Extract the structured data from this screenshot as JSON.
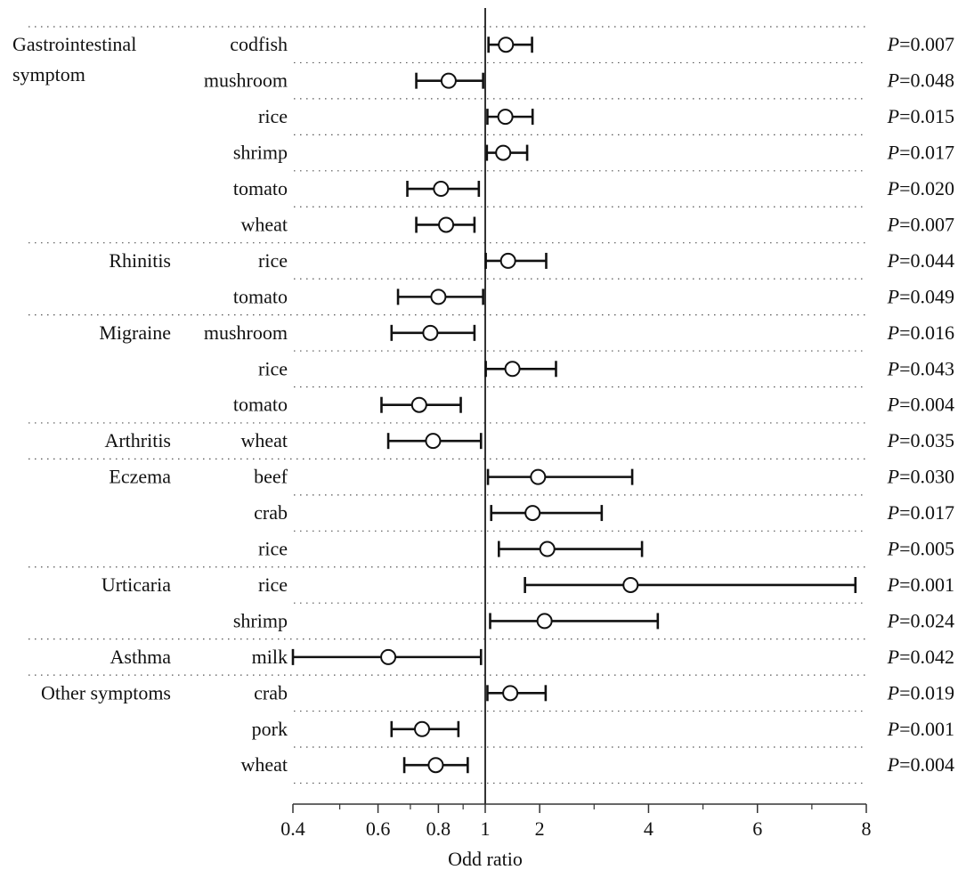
{
  "chart_data": {
    "type": "forest",
    "xlabel": "Odd ratio",
    "x_scale": "log-left-linear-right",
    "xticks": [
      "0.4",
      "0.6",
      "0.8",
      "1",
      "2",
      "4",
      "6",
      "8"
    ],
    "xlim": [
      0.4,
      8
    ],
    "reference_line": 1,
    "p_prefix": "P",
    "groups": [
      {
        "name": "Gastrointestinal symptom",
        "rows": [
          {
            "label": "codfish",
            "or": 1.38,
            "lo": 1.06,
            "hi": 1.86,
            "p": "=0.007"
          },
          {
            "label": "mushroom",
            "or": 0.84,
            "lo": 0.72,
            "hi": 0.99,
            "p": "=0.048"
          },
          {
            "label": "rice",
            "or": 1.37,
            "lo": 1.04,
            "hi": 1.87,
            "p": "=0.015"
          },
          {
            "label": "shrimp",
            "or": 1.33,
            "lo": 1.03,
            "hi": 1.77,
            "p": "=0.017"
          },
          {
            "label": "tomato",
            "or": 0.81,
            "lo": 0.69,
            "hi": 0.97,
            "p": "=0.020"
          },
          {
            "label": "wheat",
            "or": 0.83,
            "lo": 0.72,
            "hi": 0.95,
            "p": "=0.007"
          }
        ]
      },
      {
        "name": "Rhinitis",
        "rows": [
          {
            "label": "rice",
            "or": 1.42,
            "lo": 1.01,
            "hi": 2.12,
            "p": "=0.044"
          },
          {
            "label": "tomato",
            "or": 0.8,
            "lo": 0.66,
            "hi": 0.99,
            "p": "=0.049"
          }
        ]
      },
      {
        "name": "Migraine",
        "rows": [
          {
            "label": "mushroom",
            "or": 0.77,
            "lo": 0.64,
            "hi": 0.95,
            "p": "=0.016"
          },
          {
            "label": "rice",
            "or": 1.5,
            "lo": 1.01,
            "hi": 2.3,
            "p": "=0.043"
          },
          {
            "label": "tomato",
            "or": 0.73,
            "lo": 0.61,
            "hi": 0.89,
            "p": "=0.004"
          }
        ]
      },
      {
        "name": "Arthritis",
        "rows": [
          {
            "label": "wheat",
            "or": 0.78,
            "lo": 0.63,
            "hi": 0.98,
            "p": "=0.035"
          }
        ]
      },
      {
        "name": "Eczema",
        "rows": [
          {
            "label": "beef",
            "or": 1.97,
            "lo": 1.05,
            "hi": 3.7,
            "p": "=0.030"
          },
          {
            "label": "crab",
            "or": 1.87,
            "lo": 1.11,
            "hi": 3.14,
            "p": "=0.017"
          },
          {
            "label": "rice",
            "or": 2.14,
            "lo": 1.25,
            "hi": 3.88,
            "p": "=0.005"
          }
        ]
      },
      {
        "name": "Urticaria",
        "rows": [
          {
            "label": "rice",
            "or": 3.67,
            "lo": 1.73,
            "hi": 7.8,
            "p": "=0.001"
          },
          {
            "label": "shrimp",
            "or": 2.09,
            "lo": 1.09,
            "hi": 4.17,
            "p": "=0.024"
          }
        ]
      },
      {
        "name": "Asthma",
        "rows": [
          {
            "label": "milk",
            "or": 0.63,
            "lo": 0.4,
            "hi": 0.98,
            "p": "=0.042"
          }
        ]
      },
      {
        "name": "Other symptoms",
        "rows": [
          {
            "label": "crab",
            "or": 1.46,
            "lo": 1.04,
            "hi": 2.11,
            "p": "=0.019"
          },
          {
            "label": "pork",
            "or": 0.74,
            "lo": 0.64,
            "hi": 0.88,
            "p": "=0.001"
          },
          {
            "label": "wheat",
            "or": 0.79,
            "lo": 0.68,
            "hi": 0.92,
            "p": "=0.004"
          }
        ]
      }
    ]
  }
}
